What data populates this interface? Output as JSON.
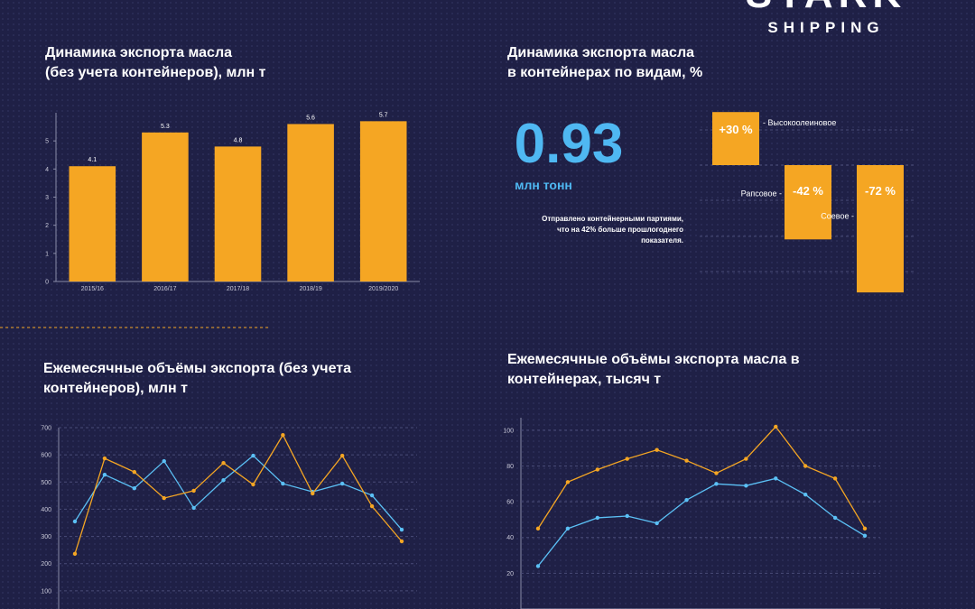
{
  "logo": {
    "name": "STARK",
    "tagline": "SHIPPING"
  },
  "highlight": {
    "value": "0.93",
    "unit": "млн тонн",
    "note": [
      "Отправлено контейнерными партиями,",
      "что на 42% больше прошлогоднего",
      "показателя."
    ]
  },
  "chart_data": [
    {
      "type": "bar",
      "title": [
        "Динамика экспорта масла",
        "(без учета контейнеров), млн т"
      ],
      "categories": [
        "2015/16",
        "2016/17",
        "2017/18",
        "2018/19",
        "2019/2020"
      ],
      "values": [
        4.1,
        5.3,
        4.8,
        5.6,
        5.7
      ],
      "color": "#f5a623",
      "ylim": [
        0,
        6
      ],
      "yticks": [
        0,
        1,
        2,
        3,
        4,
        5
      ],
      "grid": false
    },
    {
      "type": "bar",
      "title": [
        "Динамика экспорта масла",
        "в контейнерах по видам, %"
      ],
      "categories": [
        "- Высокоолеиновое",
        "Рапсовое -",
        "Соевое -"
      ],
      "values": [
        30,
        -42,
        -72
      ],
      "value_labels": [
        "+30 %",
        "-42 %",
        "-72 %"
      ],
      "color": "#f5a623"
    },
    {
      "type": "line",
      "title": [
        "Ежемесячные объёмы экспорта (без учета",
        "контейнеров), млн т"
      ],
      "series": [
        {
          "name": null,
          "color": "#5bc0f5",
          "values": [
            355,
            527,
            477,
            577,
            405,
            507,
            597,
            494,
            464,
            494,
            451,
            325
          ]
        },
        {
          "name": null,
          "color": "#f5a623",
          "values": [
            236,
            587,
            537,
            441,
            468,
            570,
            491,
            673,
            458,
            597,
            411,
            282
          ]
        }
      ],
      "ylim": [
        0,
        700
      ],
      "yticks": [
        100,
        200,
        300,
        400,
        500,
        600,
        700
      ],
      "grid": true
    },
    {
      "type": "line",
      "title": [
        "Ежемесячные объёмы экспорта масла в",
        "контейнерах, тысяч т"
      ],
      "series": [
        {
          "name": null,
          "color": "#5bc0f5",
          "values": [
            24,
            45,
            51,
            52,
            48,
            61,
            70,
            69,
            73,
            64,
            51,
            41
          ]
        },
        {
          "name": null,
          "color": "#f5a623",
          "values": [
            45,
            71,
            78,
            84,
            89,
            83,
            76,
            84,
            102,
            80,
            73,
            45
          ]
        }
      ],
      "ylim": [
        0,
        107
      ],
      "yticks": [
        20,
        40,
        60,
        80,
        100
      ],
      "grid": true
    }
  ]
}
